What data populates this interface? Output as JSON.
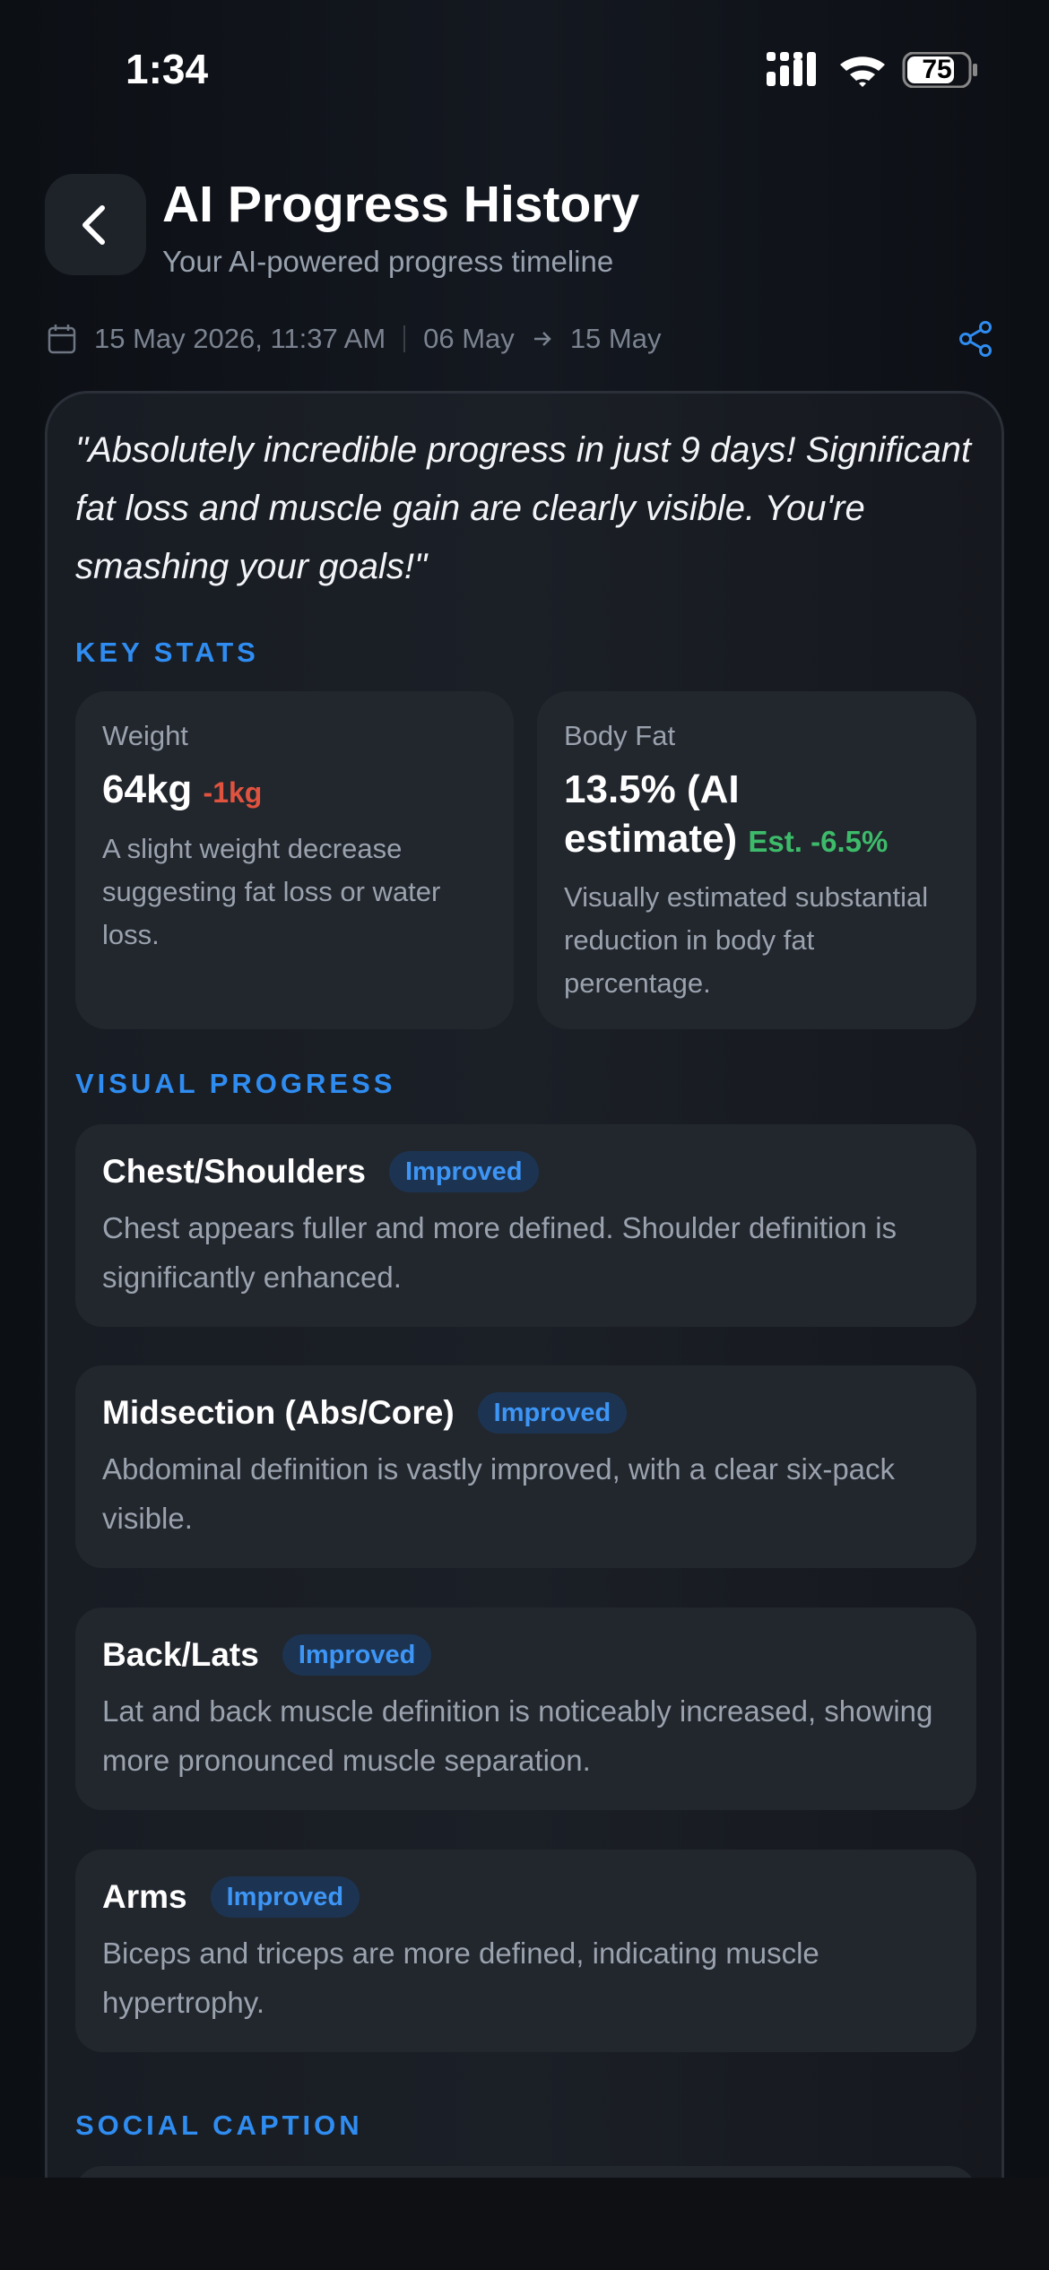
{
  "status_bar": {
    "time": "1:34",
    "battery": "75"
  },
  "header": {
    "title": "AI Progress History",
    "subtitle": "Your AI-powered progress timeline"
  },
  "meta": {
    "date": "15 May 2026, 11:37 AM",
    "from": "06 May",
    "to": "15 May"
  },
  "summary": {
    "quote": "\"Absolutely incredible progress in just 9 days! Significant fat loss and muscle gain are clearly visible. You're smashing your goals!\""
  },
  "key_stats": {
    "heading": "KEY STATS",
    "items": [
      {
        "label": "Weight",
        "value": "64kg",
        "change": "-1kg",
        "description": "A slight weight decrease suggesting fat loss or water loss."
      },
      {
        "label": "Body Fat",
        "value": "13.5% (AI estimate)",
        "change": "Est. -6.5%",
        "description": "Visually estimated substantial reduction in body fat percentage."
      }
    ]
  },
  "visual_progress": {
    "heading": "VISUAL PROGRESS",
    "items": [
      {
        "area": "Chest/Shoulders",
        "status": "Improved",
        "description": "Chest appears fuller and more defined. Shoulder definition is significantly enhanced."
      },
      {
        "area": "Midsection (Abs/Core)",
        "status": "Improved",
        "description": "Abdominal definition is vastly improved, with a clear six-pack visible."
      },
      {
        "area": "Back/Lats",
        "status": "Improved",
        "description": "Lat and back muscle definition is noticeably increased, showing more pronounced muscle separation."
      },
      {
        "area": "Arms",
        "status": "Improved",
        "description": "Biceps and triceps are more defined, indicating muscle hypertrophy."
      }
    ]
  },
  "social_caption": {
    "heading": "SOCIAL CAPTION"
  }
}
